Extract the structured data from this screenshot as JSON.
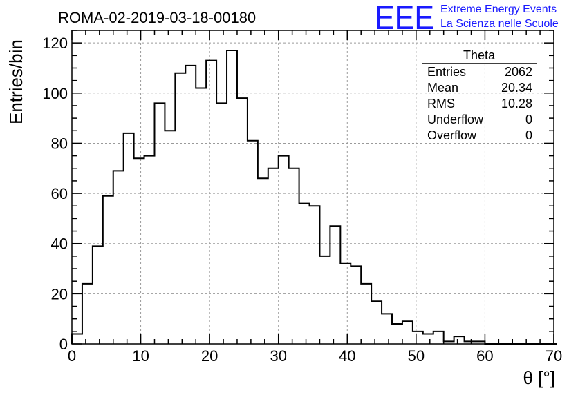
{
  "colors": {
    "logo": "#1a1aff",
    "grid": "#9a9a9a",
    "line": "#000000"
  },
  "header": {
    "run_title": "ROMA-02-2019-03-18-00180",
    "logo_text": "EEE",
    "logo_line1": "Extreme Energy Events",
    "logo_line2": "La Scienza nelle Scuole"
  },
  "stats": {
    "title": "Theta",
    "rows": [
      {
        "label": "Entries",
        "value": "2062"
      },
      {
        "label": "Mean",
        "value": "20.34"
      },
      {
        "label": "RMS",
        "value": "10.28"
      },
      {
        "label": "Underflow",
        "value": "0"
      },
      {
        "label": "Overflow",
        "value": "0"
      }
    ]
  },
  "chart_data": {
    "type": "histogram",
    "title": "ROMA-02-2019-03-18-00180",
    "xlabel": "θ [°]",
    "ylabel": "Entries/bin",
    "xlim": [
      0,
      70
    ],
    "ylim": [
      0,
      125
    ],
    "bin_width": 1.5,
    "x_start": 0,
    "x_ticks": [
      0,
      10,
      20,
      30,
      40,
      50,
      60,
      70
    ],
    "y_ticks": [
      0,
      20,
      40,
      60,
      80,
      100,
      120
    ],
    "grid": true,
    "values": [
      4,
      24,
      39,
      59,
      69,
      84,
      74,
      75,
      96,
      85,
      108,
      111,
      102,
      113,
      96,
      117,
      98,
      81,
      66,
      70,
      75,
      70,
      56,
      55,
      35,
      47,
      32,
      31,
      24,
      17,
      12,
      8,
      9,
      5,
      4,
      5,
      1,
      3,
      1,
      1,
      0,
      0,
      0,
      0,
      0,
      0,
      0
    ]
  }
}
